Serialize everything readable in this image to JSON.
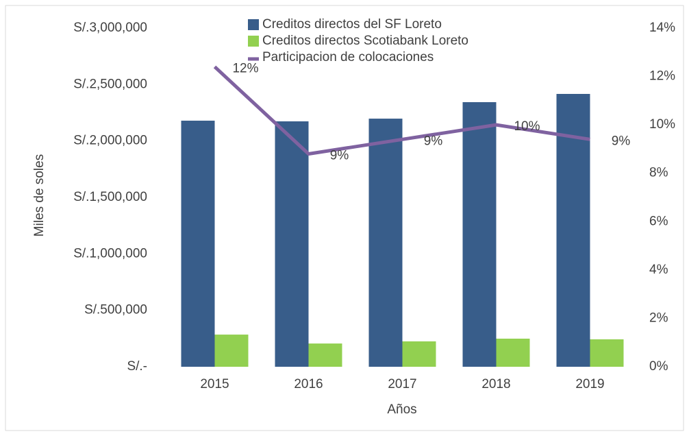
{
  "chart_data": {
    "type": "bar_line",
    "xlabel": "Años",
    "ylabel": "Miles de soles",
    "categories": [
      "2015",
      "2016",
      "2017",
      "2018",
      "2019"
    ],
    "series": [
      {
        "name": "Creditos directos del SF Loreto",
        "type": "bar",
        "color": "#385d8a",
        "values": [
          2180000,
          2174000,
          2198000,
          2344000,
          2417000
        ]
      },
      {
        "name": "Creditos directos Scotiabank Loreto",
        "type": "bar",
        "color": "#92d050",
        "values": [
          285000,
          206000,
          225000,
          249000,
          243000
        ]
      },
      {
        "name": "Participacion de colocaciones",
        "type": "line",
        "axis": "y2",
        "color": "#7f62a0",
        "values": [
          12.4,
          8.8,
          9.4,
          10.0,
          9.4
        ],
        "value_labels": [
          "12%",
          "9%",
          "9%",
          "10%",
          "9%"
        ]
      }
    ],
    "ylim": [
      0,
      3000000
    ],
    "yticks": [
      {
        "value": 0,
        "label": "S/.-"
      },
      {
        "value": 500000,
        "label": "S/.500,000"
      },
      {
        "value": 1000000,
        "label": "S/.1,000,000"
      },
      {
        "value": 1500000,
        "label": "S/.1,500,000"
      },
      {
        "value": 2000000,
        "label": "S/.2,000,000"
      },
      {
        "value": 2500000,
        "label": "S/.2,500,000"
      },
      {
        "value": 3000000,
        "label": "S/.3,000,000"
      }
    ],
    "y2lim": [
      0,
      14
    ],
    "y2ticks": [
      {
        "value": 0,
        "label": "0%"
      },
      {
        "value": 2,
        "label": "2%"
      },
      {
        "value": 4,
        "label": "4%"
      },
      {
        "value": 6,
        "label": "6%"
      },
      {
        "value": 8,
        "label": "8%"
      },
      {
        "value": 10,
        "label": "10%"
      },
      {
        "value": 12,
        "label": "12%"
      },
      {
        "value": 14,
        "label": "14%"
      }
    ],
    "legend": "top"
  }
}
